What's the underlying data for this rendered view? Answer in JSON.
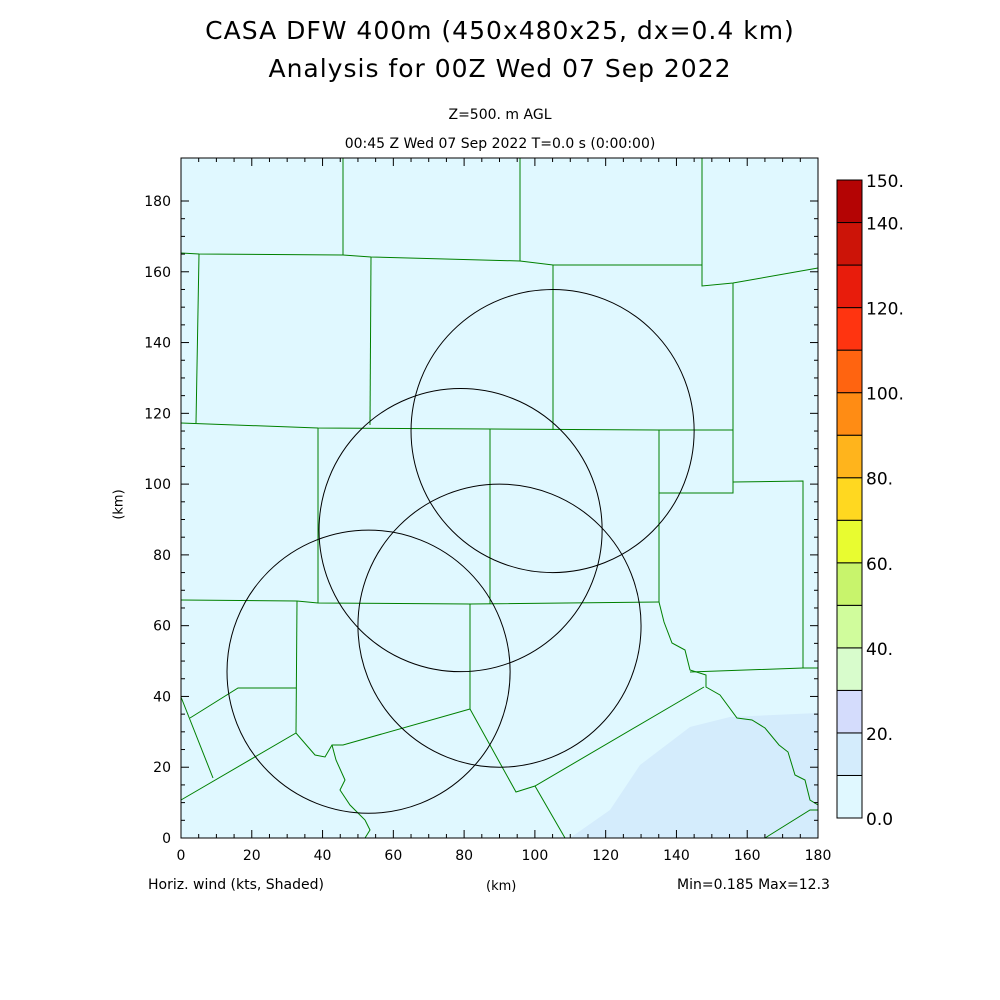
{
  "title_line1": "CASA DFW 400m (450x480x25, dx=0.4 km)",
  "title_line2": "Analysis for 00Z Wed 07 Sep 2022",
  "level_label": "Z=500. m AGL",
  "time_label": "00:45 Z Wed 07 Sep 2022   T=0.0 s (0:00:00)",
  "footer_left": "Horiz. wind (kts, Shaded)",
  "footer_center": "(km)",
  "footer_right": "Min=0.185 Max=12.3",
  "y_axis_label": "(km)",
  "chart_data": {
    "type": "heatmap",
    "variable": "Horiz. wind (kts, Shaded)",
    "xlim": [
      0,
      180
    ],
    "ylim": [
      0,
      192.5
    ],
    "xticks": [
      0,
      20,
      40,
      60,
      80,
      100,
      120,
      140,
      160,
      180
    ],
    "yticks": [
      0,
      20,
      40,
      60,
      80,
      100,
      120,
      140,
      160,
      180
    ],
    "min": 0.185,
    "max": 12.3,
    "radar_range_circles_km": [
      {
        "x": 105,
        "y": 115,
        "r": 40
      },
      {
        "x": 79,
        "y": 87,
        "r": 40
      },
      {
        "x": 90,
        "y": 60,
        "r": 40
      },
      {
        "x": 53,
        "y": 47,
        "r": 40
      }
    ],
    "colorbar": {
      "levels": [
        0,
        10,
        20,
        30,
        40,
        50,
        60,
        70,
        80,
        90,
        100,
        110,
        120,
        130,
        140,
        150
      ],
      "labels": [
        "0.0",
        "20.",
        "40.",
        "60.",
        "80.",
        "100.",
        "120.",
        "140.",
        "150."
      ],
      "label_values": [
        0,
        20,
        40,
        60,
        80,
        100,
        120,
        140,
        150
      ],
      "colors": [
        "#e0f8ff",
        "#d4ecfc",
        "#d4dcfc",
        "#d8fccc",
        "#d0fc9c",
        "#c8f46c",
        "#e8fc30",
        "#ffd820",
        "#ffb41c",
        "#ff8c14",
        "#ff6410",
        "#ff3410",
        "#e81c0c",
        "#cc1408",
        "#b40404"
      ]
    }
  }
}
